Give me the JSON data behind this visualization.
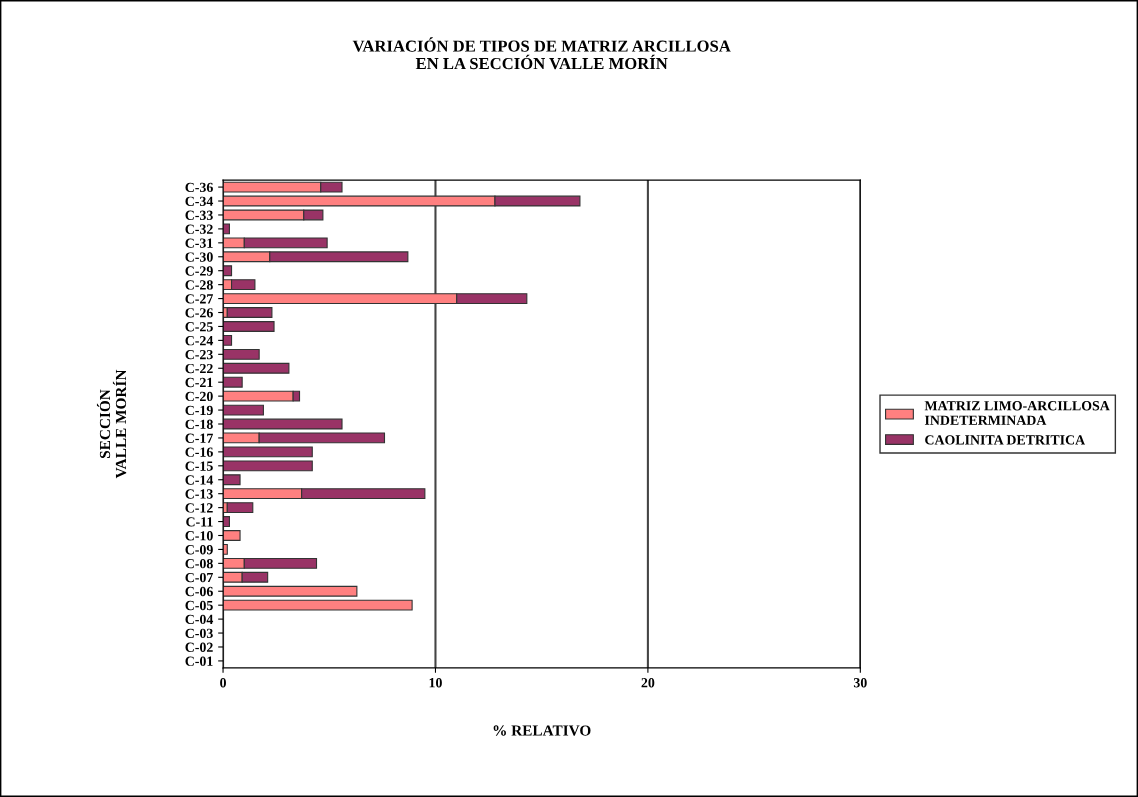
{
  "chart_data": {
    "type": "bar",
    "orientation": "horizontal",
    "stacked": true,
    "title": "VARIACIÓN DE TIPOS DE MATRIZ ARCILLOSA\nEN LA SECCIÓN VALLE MORÍN",
    "xlabel": "% RELATIVO",
    "ylabel": "SECCIÓN\nVALLE MORÍN",
    "categories": [
      "C-36",
      "C-34",
      "C-33",
      "C-32",
      "C-31",
      "C-30",
      "C-29",
      "C-28",
      "C-27",
      "C-26",
      "C-25",
      "C-24",
      "C-23",
      "C-22",
      "C-21",
      "C-20",
      "C-19",
      "C-18",
      "C-17",
      "C-16",
      "C-15",
      "C-14",
      "C-13",
      "C-12",
      "C-11",
      "C-10",
      "C-09",
      "C-08",
      "C-07",
      "C-06",
      "C-05",
      "C-04",
      "C-03",
      "C-02",
      "C-01"
    ],
    "series": [
      {
        "name": "MATRIZ LIMO-ARCILLOSA INDETERMINADA",
        "color": "#ff8080",
        "values": [
          4.6,
          12.8,
          3.8,
          0,
          1.0,
          2.2,
          0,
          0.4,
          11.0,
          0.2,
          0,
          0,
          0,
          0,
          0,
          3.3,
          0,
          0,
          1.7,
          0,
          0,
          0,
          3.7,
          0.2,
          0,
          0.8,
          0.2,
          1.0,
          0.9,
          6.3,
          8.9,
          0,
          0,
          0,
          0
        ]
      },
      {
        "name": "CAOLINITA DETRITICA",
        "color": "#993366",
        "values": [
          1.0,
          4.0,
          0.9,
          0.3,
          3.9,
          6.5,
          0.4,
          1.1,
          3.3,
          2.1,
          2.4,
          0.4,
          1.7,
          3.1,
          0.9,
          0.3,
          1.9,
          5.6,
          5.9,
          4.2,
          4.2,
          0.8,
          5.8,
          1.2,
          0.3,
          0,
          0,
          3.4,
          1.2,
          0,
          0,
          0,
          0,
          0,
          0
        ]
      }
    ],
    "xlim": [
      0,
      30
    ],
    "xticks": [
      0,
      10,
      20,
      30
    ],
    "grid": "x",
    "legend": "right"
  }
}
